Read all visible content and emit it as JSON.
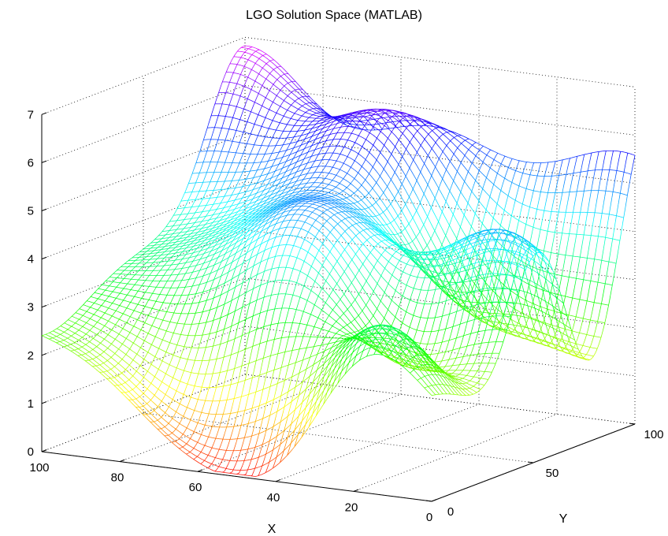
{
  "chart_data": {
    "type": "surface",
    "title": "LGO Solution Space (MATLAB)",
    "xlabel": "X",
    "ylabel": "Y",
    "zlabel": "",
    "xlim": [
      0,
      100
    ],
    "ylim": [
      0,
      100
    ],
    "zlim": [
      0,
      7
    ],
    "x_ticks": [
      {
        "value": 0,
        "label": "0"
      },
      {
        "value": 20,
        "label": "20"
      },
      {
        "value": 40,
        "label": "40"
      },
      {
        "value": 60,
        "label": "60"
      },
      {
        "value": 80,
        "label": "80"
      },
      {
        "value": 100,
        "label": "100"
      }
    ],
    "y_ticks": [
      {
        "value": 0,
        "label": "0"
      },
      {
        "value": 50,
        "label": "50"
      },
      {
        "value": 100,
        "label": "100"
      }
    ],
    "z_ticks": [
      {
        "value": 0,
        "label": "0"
      },
      {
        "value": 1,
        "label": "1"
      },
      {
        "value": 2,
        "label": "2"
      },
      {
        "value": 3,
        "label": "3"
      },
      {
        "value": 4,
        "label": "4"
      },
      {
        "value": 5,
        "label": "5"
      },
      {
        "value": 6,
        "label": "6"
      },
      {
        "value": 7,
        "label": "7"
      }
    ],
    "grid": true,
    "mesh_style": "wireframe",
    "colormap": "hsv",
    "surface_peaks": [
      {
        "x": 100,
        "y": 0,
        "z": 2.4
      },
      {
        "x": 100,
        "y": 100,
        "z": 6.9
      },
      {
        "x": 78,
        "y": 48,
        "z": 4.0
      },
      {
        "x": 72,
        "y": 100,
        "z": 5.4
      },
      {
        "x": 68,
        "y": 25,
        "z": 2.8
      },
      {
        "x": 55,
        "y": 85,
        "z": 6.0
      },
      {
        "x": 45,
        "y": 28,
        "z": 3.8
      },
      {
        "x": 40,
        "y": 55,
        "z": 4.2
      },
      {
        "x": 30,
        "y": 100,
        "z": 5.2
      },
      {
        "x": 22,
        "y": 12,
        "z": 3.4
      },
      {
        "x": 18,
        "y": 55,
        "z": 4.6
      },
      {
        "x": 0,
        "y": 50,
        "z": 4.3
      },
      {
        "x": 0,
        "y": 100,
        "z": 5.7
      },
      {
        "x": 0,
        "y": 10,
        "z": 2.0
      },
      {
        "x": 35,
        "y": 0,
        "z": 0.6
      }
    ],
    "surface_valleys": [
      {
        "x": 55,
        "y": 5,
        "z": 0.2
      },
      {
        "x": 48,
        "y": 2,
        "z": 0.3
      },
      {
        "x": 25,
        "y": 30,
        "z": 2.0
      },
      {
        "x": 30,
        "y": 70,
        "z": 2.6
      },
      {
        "x": 0,
        "y": 85,
        "z": 2.2
      }
    ]
  }
}
